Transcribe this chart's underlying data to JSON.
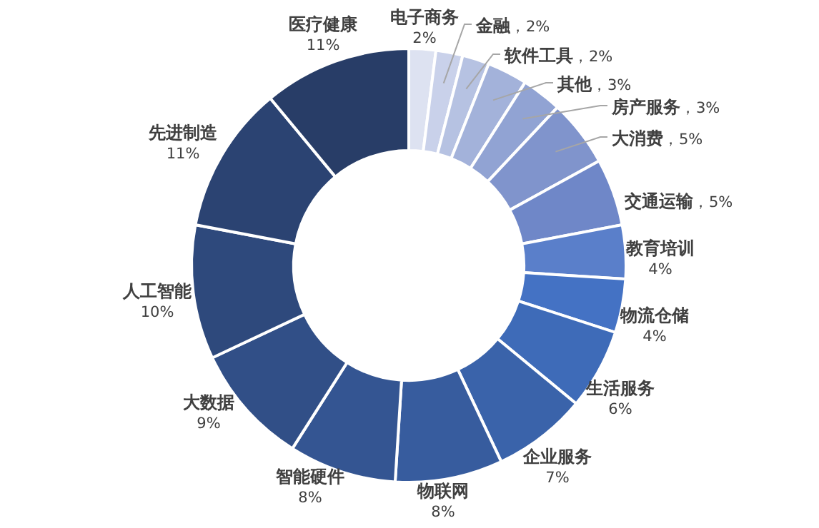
{
  "chart_data": {
    "type": "donut",
    "categories": [
      "电子商务",
      "金融",
      "软件工具",
      "其他",
      "房产服务",
      "大消费",
      "交通运输",
      "教育培训",
      "物流仓储",
      "生活服务",
      "企业服务",
      "物联网",
      "智能硬件",
      "大数据",
      "人工智能",
      "先进制造",
      "医疗健康"
    ],
    "values": [
      2,
      2,
      2,
      3,
      3,
      5,
      5,
      4,
      4,
      6,
      7,
      8,
      8,
      9,
      10,
      11,
      11
    ],
    "colors": [
      "#dde2f1",
      "#c9d1ea",
      "#b6c2e2",
      "#a3b2da",
      "#91a3d3",
      "#8094cc",
      "#6f87c8",
      "#5a7fca",
      "#4472c4",
      "#3e6bb8",
      "#3a63aa",
      "#375c9e",
      "#345592",
      "#314f87",
      "#2e497c",
      "#2b4372",
      "#283d67"
    ],
    "value_labels": [
      "2%",
      "，2%",
      "，2%",
      "，3%",
      "，3%",
      "，5%",
      "，5%",
      "4%",
      "4%",
      "6%",
      "7%",
      "8%",
      "8%",
      "9%",
      "10%",
      "11%",
      "11%"
    ]
  }
}
